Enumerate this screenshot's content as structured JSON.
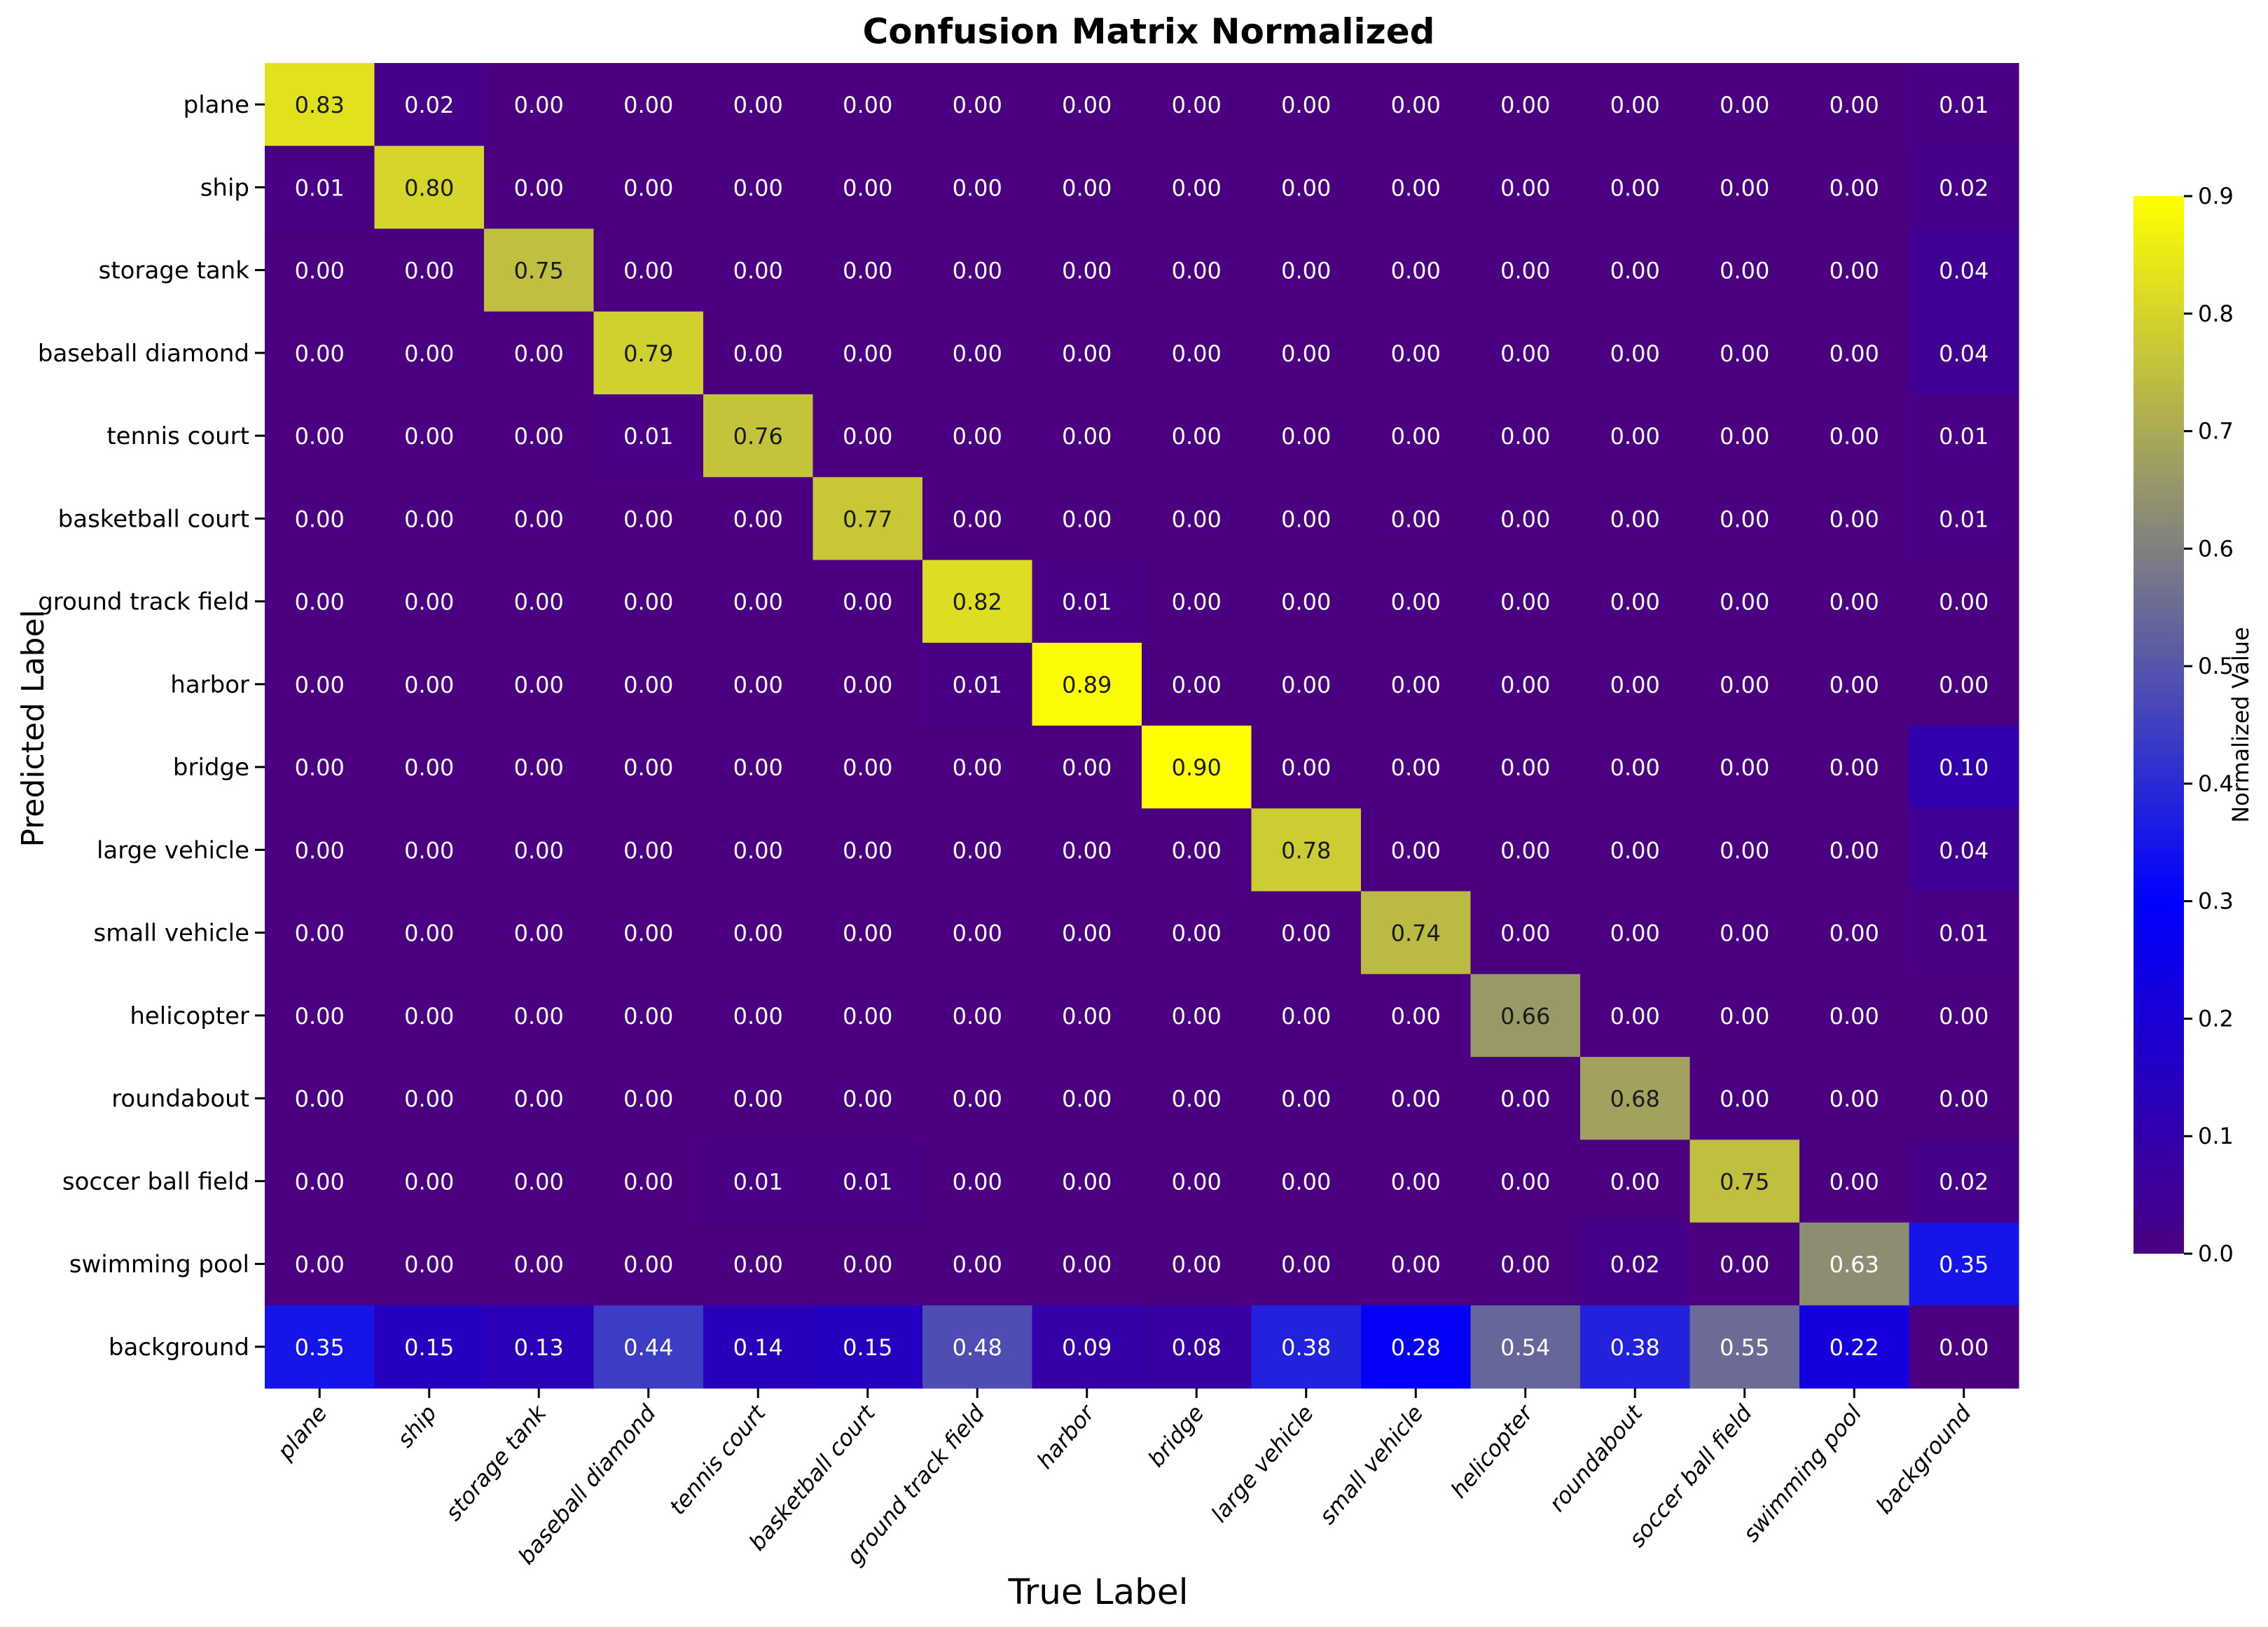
{
  "chart_data": {
    "type": "heatmap",
    "title": "Confusion Matrix Normalized",
    "xlabel": "True Label",
    "ylabel": "Predicted Label",
    "colorbar_label": "Normalized Value",
    "colorbar_range": [
      0.0,
      0.9
    ],
    "colorbar_ticks": [
      "0.0",
      "0.1",
      "0.2",
      "0.3",
      "0.4",
      "0.5",
      "0.6",
      "0.7",
      "0.8",
      "0.9"
    ],
    "colormap_stops": [
      "#4B0082",
      "#0000FF",
      "#808080",
      "#FFFF00"
    ],
    "x_categories": [
      "plane",
      "ship",
      "storage tank",
      "baseball diamond",
      "tennis court",
      "basketball court",
      "ground track field",
      "harbor",
      "bridge",
      "large vehicle",
      "small vehicle",
      "helicopter",
      "roundabout",
      "soccer ball field",
      "swimming pool",
      "background"
    ],
    "y_categories": [
      "plane",
      "ship",
      "storage tank",
      "baseball diamond",
      "tennis court",
      "basketball court",
      "ground track field",
      "harbor",
      "bridge",
      "large vehicle",
      "small vehicle",
      "helicopter",
      "roundabout",
      "soccer ball field",
      "swimming pool",
      "background"
    ],
    "values": [
      [
        0.83,
        0.02,
        0.0,
        0.0,
        0.0,
        0.0,
        0.0,
        0.0,
        0.0,
        0.0,
        0.0,
        0.0,
        0.0,
        0.0,
        0.0,
        0.01
      ],
      [
        0.01,
        0.8,
        0.0,
        0.0,
        0.0,
        0.0,
        0.0,
        0.0,
        0.0,
        0.0,
        0.0,
        0.0,
        0.0,
        0.0,
        0.0,
        0.02
      ],
      [
        0.0,
        0.0,
        0.75,
        0.0,
        0.0,
        0.0,
        0.0,
        0.0,
        0.0,
        0.0,
        0.0,
        0.0,
        0.0,
        0.0,
        0.0,
        0.04
      ],
      [
        0.0,
        0.0,
        0.0,
        0.79,
        0.0,
        0.0,
        0.0,
        0.0,
        0.0,
        0.0,
        0.0,
        0.0,
        0.0,
        0.0,
        0.0,
        0.04
      ],
      [
        0.0,
        0.0,
        0.0,
        0.01,
        0.76,
        0.0,
        0.0,
        0.0,
        0.0,
        0.0,
        0.0,
        0.0,
        0.0,
        0.0,
        0.0,
        0.01
      ],
      [
        0.0,
        0.0,
        0.0,
        0.0,
        0.0,
        0.77,
        0.0,
        0.0,
        0.0,
        0.0,
        0.0,
        0.0,
        0.0,
        0.0,
        0.0,
        0.01
      ],
      [
        0.0,
        0.0,
        0.0,
        0.0,
        0.0,
        0.0,
        0.82,
        0.01,
        0.0,
        0.0,
        0.0,
        0.0,
        0.0,
        0.0,
        0.0,
        0.0
      ],
      [
        0.0,
        0.0,
        0.0,
        0.0,
        0.0,
        0.0,
        0.01,
        0.89,
        0.0,
        0.0,
        0.0,
        0.0,
        0.0,
        0.0,
        0.0,
        0.0
      ],
      [
        0.0,
        0.0,
        0.0,
        0.0,
        0.0,
        0.0,
        0.0,
        0.0,
        0.9,
        0.0,
        0.0,
        0.0,
        0.0,
        0.0,
        0.0,
        0.1
      ],
      [
        0.0,
        0.0,
        0.0,
        0.0,
        0.0,
        0.0,
        0.0,
        0.0,
        0.0,
        0.78,
        0.0,
        0.0,
        0.0,
        0.0,
        0.0,
        0.04
      ],
      [
        0.0,
        0.0,
        0.0,
        0.0,
        0.0,
        0.0,
        0.0,
        0.0,
        0.0,
        0.0,
        0.74,
        0.0,
        0.0,
        0.0,
        0.0,
        0.01
      ],
      [
        0.0,
        0.0,
        0.0,
        0.0,
        0.0,
        0.0,
        0.0,
        0.0,
        0.0,
        0.0,
        0.0,
        0.66,
        0.0,
        0.0,
        0.0,
        0.0
      ],
      [
        0.0,
        0.0,
        0.0,
        0.0,
        0.0,
        0.0,
        0.0,
        0.0,
        0.0,
        0.0,
        0.0,
        0.0,
        0.68,
        0.0,
        0.0,
        0.0
      ],
      [
        0.0,
        0.0,
        0.0,
        0.0,
        0.01,
        0.01,
        0.0,
        0.0,
        0.0,
        0.0,
        0.0,
        0.0,
        0.0,
        0.75,
        0.0,
        0.02
      ],
      [
        0.0,
        0.0,
        0.0,
        0.0,
        0.0,
        0.0,
        0.0,
        0.0,
        0.0,
        0.0,
        0.0,
        0.0,
        0.02,
        0.0,
        0.63,
        0.35
      ],
      [
        0.35,
        0.15,
        0.13,
        0.44,
        0.14,
        0.15,
        0.48,
        0.09,
        0.08,
        0.38,
        0.28,
        0.54,
        0.38,
        0.55,
        0.22,
        0.0
      ]
    ]
  }
}
